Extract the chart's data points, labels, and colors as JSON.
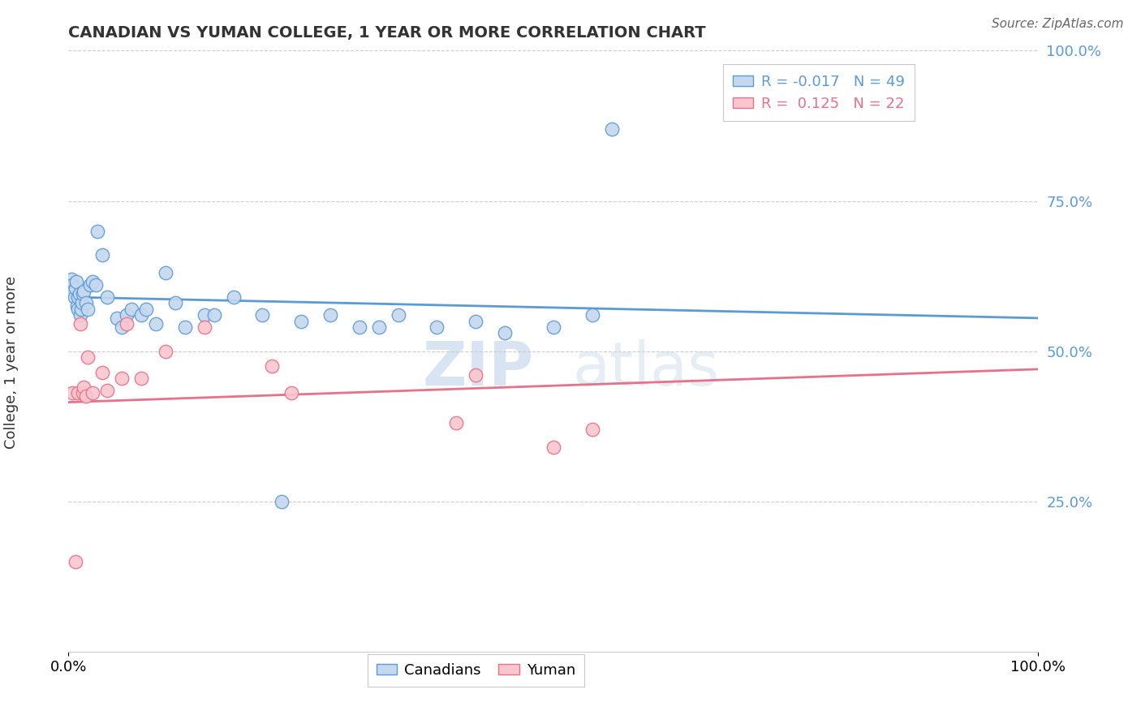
{
  "title": "CANADIAN VS YUMAN COLLEGE, 1 YEAR OR MORE CORRELATION CHART",
  "source_text": "Source: ZipAtlas.com",
  "ylabel": "College, 1 year or more",
  "xlim": [
    0.0,
    1.0
  ],
  "ylim": [
    0.0,
    1.0
  ],
  "legend_r_canadian": "-0.017",
  "legend_n_canadian": "49",
  "legend_r_yuman": "0.125",
  "legend_n_yuman": "22",
  "canadian_face_color": "#c5d8ef",
  "canadian_edge_color": "#5b9bd5",
  "yuman_face_color": "#f9c6ce",
  "yuman_edge_color": "#e8718a",
  "canadian_line_color": "#5b9bd5",
  "yuman_line_color": "#e8718a",
  "background_color": "#ffffff",
  "watermark_text": "ZIPatlas",
  "canadians_x": [
    0.003,
    0.004,
    0.005,
    0.006,
    0.007,
    0.008,
    0.009,
    0.01,
    0.01,
    0.011,
    0.012,
    0.013,
    0.014,
    0.015,
    0.016,
    0.018,
    0.02,
    0.022,
    0.025,
    0.028,
    0.03,
    0.035,
    0.04,
    0.05,
    0.055,
    0.06,
    0.065,
    0.075,
    0.08,
    0.09,
    0.1,
    0.11,
    0.12,
    0.14,
    0.15,
    0.17,
    0.2,
    0.22,
    0.24,
    0.27,
    0.3,
    0.32,
    0.34,
    0.38,
    0.42,
    0.45,
    0.5,
    0.54,
    0.56
  ],
  "canadians_y": [
    0.62,
    0.61,
    0.6,
    0.59,
    0.605,
    0.615,
    0.575,
    0.57,
    0.59,
    0.595,
    0.56,
    0.57,
    0.58,
    0.595,
    0.6,
    0.58,
    0.57,
    0.61,
    0.615,
    0.61,
    0.7,
    0.66,
    0.59,
    0.555,
    0.54,
    0.56,
    0.57,
    0.56,
    0.57,
    0.545,
    0.63,
    0.58,
    0.54,
    0.56,
    0.56,
    0.59,
    0.56,
    0.25,
    0.55,
    0.56,
    0.54,
    0.54,
    0.56,
    0.54,
    0.55,
    0.53,
    0.54,
    0.56,
    0.87
  ],
  "yuman_x": [
    0.004,
    0.007,
    0.01,
    0.012,
    0.015,
    0.016,
    0.018,
    0.02,
    0.025,
    0.035,
    0.04,
    0.055,
    0.06,
    0.075,
    0.1,
    0.14,
    0.21,
    0.23,
    0.4,
    0.42,
    0.5,
    0.54
  ],
  "yuman_y": [
    0.43,
    0.15,
    0.43,
    0.545,
    0.43,
    0.44,
    0.425,
    0.49,
    0.43,
    0.465,
    0.435,
    0.455,
    0.545,
    0.455,
    0.5,
    0.54,
    0.475,
    0.43,
    0.38,
    0.46,
    0.34,
    0.37
  ],
  "canadian_trend_x0": 0.0,
  "canadian_trend_y0": 0.59,
  "canadian_trend_x1": 1.0,
  "canadian_trend_y1": 0.555,
  "yuman_trend_x0": 0.0,
  "yuman_trend_y0": 0.415,
  "yuman_trend_x1": 1.0,
  "yuman_trend_y1": 0.47
}
